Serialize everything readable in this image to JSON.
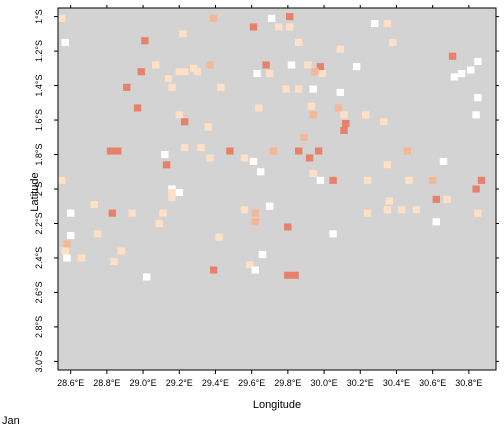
{
  "map": {
    "x_axis_title": "Longitude",
    "y_axis_title": "Latitude",
    "month_label": "Jan",
    "x_ticks": [
      "28.6°E",
      "28.8°E",
      "29.0°E",
      "29.2°E",
      "29.4°E",
      "29.6°E",
      "29.8°E",
      "30.0°E",
      "30.2°E",
      "30.4°E",
      "30.6°E",
      "30.8°E"
    ],
    "y_ticks": [
      "1°S",
      "1.2°S",
      "1.4°S",
      "1.6°S",
      "1.8°S",
      "2°S",
      "2.2°S",
      "2.4°S",
      "2.6°S",
      "2.8°S",
      "3.0°S"
    ],
    "colors": {
      "background_grid": "#d3d3d3",
      "empty_cell": "#ffffff",
      "light": "#fde0c5",
      "medium": "#f5b896",
      "strong": "#e8816a"
    }
  },
  "chart_data": {
    "type": "heatmap",
    "title": "",
    "xlabel": "Longitude",
    "ylabel": "Latitude",
    "xlim": [
      28.53,
      30.95
    ],
    "ylim": [
      -3.05,
      -0.95
    ],
    "cell_size_deg": 0.041,
    "xlabels": [
      "28.6°E",
      "28.8°E",
      "29.0°E",
      "29.2°E",
      "29.4°E",
      "29.6°E",
      "29.8°E",
      "30.0°E",
      "30.2°E",
      "30.4°E",
      "30.6°E",
      "30.8°E"
    ],
    "ylabels": [
      "1°S",
      "1.2°S",
      "1.4°S",
      "1.6°S",
      "1.8°S",
      "2°S",
      "2.2°S",
      "2.4°S",
      "2.6°S",
      "2.8°S",
      "3.0°S"
    ],
    "categories": [
      "empty",
      "light",
      "medium",
      "strong"
    ],
    "cells": [
      {
        "lon": 28.55,
        "lat": -1.01,
        "c": "light"
      },
      {
        "lon": 29.39,
        "lat": -1.01,
        "c": "medium"
      },
      {
        "lon": 29.71,
        "lat": -1.01,
        "c": "empty"
      },
      {
        "lon": 29.81,
        "lat": -1.0,
        "c": "strong"
      },
      {
        "lon": 30.28,
        "lat": -1.04,
        "c": "empty"
      },
      {
        "lon": 30.35,
        "lat": -1.04,
        "c": "light"
      },
      {
        "lon": 29.61,
        "lat": -1.06,
        "c": "strong"
      },
      {
        "lon": 29.75,
        "lat": -1.06,
        "c": "light"
      },
      {
        "lon": 29.81,
        "lat": -1.06,
        "c": "light"
      },
      {
        "lon": 29.22,
        "lat": -1.1,
        "c": "light"
      },
      {
        "lon": 28.57,
        "lat": -1.15,
        "c": "empty"
      },
      {
        "lon": 29.01,
        "lat": -1.14,
        "c": "strong"
      },
      {
        "lon": 29.86,
        "lat": -1.15,
        "c": "light"
      },
      {
        "lon": 30.38,
        "lat": -1.15,
        "c": "light"
      },
      {
        "lon": 30.09,
        "lat": -1.19,
        "c": "light"
      },
      {
        "lon": 30.71,
        "lat": -1.23,
        "c": "strong"
      },
      {
        "lon": 30.85,
        "lat": -1.26,
        "c": "empty"
      },
      {
        "lon": 29.07,
        "lat": -1.28,
        "c": "light"
      },
      {
        "lon": 29.37,
        "lat": -1.28,
        "c": "medium"
      },
      {
        "lon": 29.28,
        "lat": -1.3,
        "c": "light"
      },
      {
        "lon": 29.68,
        "lat": -1.28,
        "c": "strong"
      },
      {
        "lon": 29.82,
        "lat": -1.28,
        "c": "empty"
      },
      {
        "lon": 29.91,
        "lat": -1.28,
        "c": "light"
      },
      {
        "lon": 29.98,
        "lat": -1.29,
        "c": "strong"
      },
      {
        "lon": 30.18,
        "lat": -1.29,
        "c": "empty"
      },
      {
        "lon": 30.81,
        "lat": -1.31,
        "c": "empty"
      },
      {
        "lon": 28.99,
        "lat": -1.32,
        "c": "strong"
      },
      {
        "lon": 29.2,
        "lat": -1.32,
        "c": "light"
      },
      {
        "lon": 29.23,
        "lat": -1.32,
        "c": "light"
      },
      {
        "lon": 29.3,
        "lat": -1.32,
        "c": "light"
      },
      {
        "lon": 29.63,
        "lat": -1.33,
        "c": "empty"
      },
      {
        "lon": 29.7,
        "lat": -1.33,
        "c": "light"
      },
      {
        "lon": 29.95,
        "lat": -1.32,
        "c": "medium"
      },
      {
        "lon": 29.99,
        "lat": -1.33,
        "c": "light"
      },
      {
        "lon": 30.76,
        "lat": -1.33,
        "c": "empty"
      },
      {
        "lon": 29.14,
        "lat": -1.36,
        "c": "light"
      },
      {
        "lon": 30.72,
        "lat": -1.35,
        "c": "empty"
      },
      {
        "lon": 28.91,
        "lat": -1.41,
        "c": "strong"
      },
      {
        "lon": 29.16,
        "lat": -1.41,
        "c": "light"
      },
      {
        "lon": 29.43,
        "lat": -1.41,
        "c": "light"
      },
      {
        "lon": 29.79,
        "lat": -1.42,
        "c": "light"
      },
      {
        "lon": 29.86,
        "lat": -1.42,
        "c": "light"
      },
      {
        "lon": 29.94,
        "lat": -1.42,
        "c": "empty"
      },
      {
        "lon": 30.09,
        "lat": -1.44,
        "c": "empty"
      },
      {
        "lon": 30.85,
        "lat": -1.47,
        "c": "empty"
      },
      {
        "lon": 28.97,
        "lat": -1.53,
        "c": "strong"
      },
      {
        "lon": 29.64,
        "lat": -1.53,
        "c": "light"
      },
      {
        "lon": 29.93,
        "lat": -1.52,
        "c": "light"
      },
      {
        "lon": 30.08,
        "lat": -1.53,
        "c": "medium"
      },
      {
        "lon": 29.2,
        "lat": -1.57,
        "c": "light"
      },
      {
        "lon": 29.94,
        "lat": -1.57,
        "c": "medium"
      },
      {
        "lon": 30.11,
        "lat": -1.57,
        "c": "light"
      },
      {
        "lon": 30.23,
        "lat": -1.57,
        "c": "light"
      },
      {
        "lon": 30.84,
        "lat": -1.57,
        "c": "empty"
      },
      {
        "lon": 29.23,
        "lat": -1.61,
        "c": "strong"
      },
      {
        "lon": 30.33,
        "lat": -1.61,
        "c": "light"
      },
      {
        "lon": 29.36,
        "lat": -1.64,
        "c": "light"
      },
      {
        "lon": 30.12,
        "lat": -1.62,
        "c": "strong"
      },
      {
        "lon": 30.11,
        "lat": -1.66,
        "c": "strong"
      },
      {
        "lon": 29.89,
        "lat": -1.7,
        "c": "medium"
      },
      {
        "lon": 29.32,
        "lat": -1.76,
        "c": "light"
      },
      {
        "lon": 29.72,
        "lat": -1.78,
        "c": "medium"
      },
      {
        "lon": 29.12,
        "lat": -1.8,
        "c": "empty"
      },
      {
        "lon": 28.82,
        "lat": -1.78,
        "c": "strong"
      },
      {
        "lon": 28.86,
        "lat": -1.78,
        "c": "strong"
      },
      {
        "lon": 29.23,
        "lat": -1.76,
        "c": "light"
      },
      {
        "lon": 29.48,
        "lat": -1.78,
        "c": "strong"
      },
      {
        "lon": 29.86,
        "lat": -1.78,
        "c": "strong"
      },
      {
        "lon": 29.97,
        "lat": -1.78,
        "c": "strong"
      },
      {
        "lon": 29.92,
        "lat": -1.82,
        "c": "strong"
      },
      {
        "lon": 30.46,
        "lat": -1.78,
        "c": "medium"
      },
      {
        "lon": 29.13,
        "lat": -1.86,
        "c": "strong"
      },
      {
        "lon": 29.61,
        "lat": -1.84,
        "c": "empty"
      },
      {
        "lon": 29.56,
        "lat": -1.82,
        "c": "light"
      },
      {
        "lon": 30.35,
        "lat": -1.86,
        "c": "light"
      },
      {
        "lon": 29.37,
        "lat": -1.82,
        "c": "light"
      },
      {
        "lon": 30.66,
        "lat": -1.84,
        "c": "empty"
      },
      {
        "lon": 29.94,
        "lat": -1.91,
        "c": "light"
      },
      {
        "lon": 30.6,
        "lat": -1.95,
        "c": "medium"
      },
      {
        "lon": 30.87,
        "lat": -1.95,
        "c": "strong"
      },
      {
        "lon": 29.98,
        "lat": -1.95,
        "c": "empty"
      },
      {
        "lon": 28.55,
        "lat": -1.95,
        "c": "light"
      },
      {
        "lon": 30.05,
        "lat": -1.95,
        "c": "strong"
      },
      {
        "lon": 30.24,
        "lat": -1.95,
        "c": "light"
      },
      {
        "lon": 30.47,
        "lat": -1.95,
        "c": "light"
      },
      {
        "lon": 29.16,
        "lat": -2.0,
        "c": "empty"
      },
      {
        "lon": 30.84,
        "lat": -2.0,
        "c": "strong"
      },
      {
        "lon": 29.65,
        "lat": -1.9,
        "c": "empty"
      },
      {
        "lon": 29.16,
        "lat": -2.02,
        "c": "light"
      },
      {
        "lon": 29.16,
        "lat": -2.05,
        "c": "light"
      },
      {
        "lon": 29.2,
        "lat": -2.02,
        "c": "empty"
      },
      {
        "lon": 30.62,
        "lat": -2.06,
        "c": "strong"
      },
      {
        "lon": 30.68,
        "lat": -2.06,
        "c": "light"
      },
      {
        "lon": 30.36,
        "lat": -2.07,
        "c": "light"
      },
      {
        "lon": 28.73,
        "lat": -2.09,
        "c": "light"
      },
      {
        "lon": 29.7,
        "lat": -2.1,
        "c": "empty"
      },
      {
        "lon": 28.6,
        "lat": -2.14,
        "c": "empty"
      },
      {
        "lon": 28.83,
        "lat": -2.14,
        "c": "strong"
      },
      {
        "lon": 28.94,
        "lat": -2.14,
        "c": "light"
      },
      {
        "lon": 29.11,
        "lat": -2.14,
        "c": "light"
      },
      {
        "lon": 29.62,
        "lat": -2.14,
        "c": "medium"
      },
      {
        "lon": 29.56,
        "lat": -2.12,
        "c": "light"
      },
      {
        "lon": 30.24,
        "lat": -2.14,
        "c": "light"
      },
      {
        "lon": 30.35,
        "lat": -2.12,
        "c": "light"
      },
      {
        "lon": 30.43,
        "lat": -2.12,
        "c": "light"
      },
      {
        "lon": 30.51,
        "lat": -2.12,
        "c": "light"
      },
      {
        "lon": 30.85,
        "lat": -2.14,
        "c": "light"
      },
      {
        "lon": 29.09,
        "lat": -2.2,
        "c": "light"
      },
      {
        "lon": 29.62,
        "lat": -2.19,
        "c": "medium"
      },
      {
        "lon": 30.62,
        "lat": -2.19,
        "c": "empty"
      },
      {
        "lon": 29.8,
        "lat": -2.22,
        "c": "strong"
      },
      {
        "lon": 28.6,
        "lat": -2.27,
        "c": "empty"
      },
      {
        "lon": 28.75,
        "lat": -2.26,
        "c": "light"
      },
      {
        "lon": 30.05,
        "lat": -2.26,
        "c": "empty"
      },
      {
        "lon": 29.42,
        "lat": -2.28,
        "c": "light"
      },
      {
        "lon": 28.58,
        "lat": -2.32,
        "c": "medium"
      },
      {
        "lon": 28.57,
        "lat": -2.36,
        "c": "light"
      },
      {
        "lon": 28.88,
        "lat": -2.36,
        "c": "light"
      },
      {
        "lon": 28.58,
        "lat": -2.4,
        "c": "empty"
      },
      {
        "lon": 28.66,
        "lat": -2.4,
        "c": "light"
      },
      {
        "lon": 29.39,
        "lat": -2.47,
        "c": "strong"
      },
      {
        "lon": 29.66,
        "lat": -2.38,
        "c": "empty"
      },
      {
        "lon": 28.84,
        "lat": -2.42,
        "c": "light"
      },
      {
        "lon": 29.59,
        "lat": -2.44,
        "c": "light"
      },
      {
        "lon": 29.8,
        "lat": -2.5,
        "c": "strong"
      },
      {
        "lon": 29.84,
        "lat": -2.5,
        "c": "strong"
      },
      {
        "lon": 29.62,
        "lat": -2.47,
        "c": "empty"
      },
      {
        "lon": 29.02,
        "lat": -2.51,
        "c": "empty"
      }
    ]
  }
}
